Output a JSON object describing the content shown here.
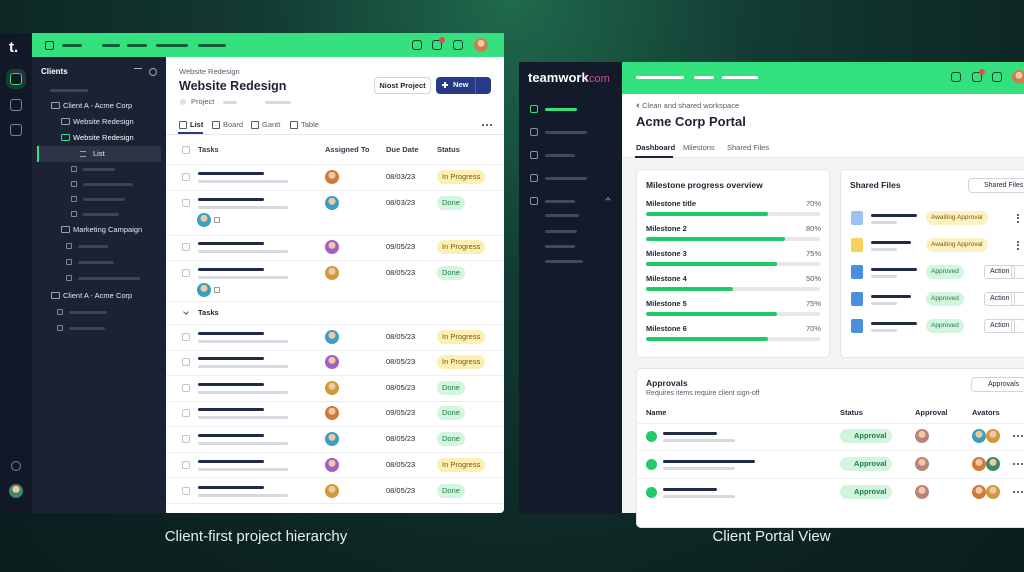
{
  "left": {
    "logo": "t.",
    "tree": {
      "title": "Clients",
      "items": [
        "Client A - Acme Corp",
        "Website Redesign",
        "Website Redesign",
        "List",
        "Marketing Campaign",
        "Client A - Acme Corp"
      ]
    },
    "main": {
      "breadcrumb": "Website Redesign",
      "title": "Website Redesign",
      "tag": "Project",
      "buttons": [
        "Niost Project",
        "New"
      ],
      "tabs": [
        "List",
        "Board",
        "Gantt",
        "Table"
      ],
      "columns": [
        "Tasks",
        "Assigned To",
        "Due Date",
        "Status"
      ],
      "rows": [
        {
          "due": "08/03/23",
          "status": "In Progress"
        },
        {
          "due": "08/03/23",
          "status": "Done"
        },
        {
          "due": "09/05/23",
          "status": "In Progress"
        },
        {
          "due": "08/05/23",
          "status": "Done"
        }
      ],
      "group": "Tasks",
      "group_rows": [
        {
          "due": "08/05/23",
          "status": "In Progress"
        },
        {
          "due": "08/05/23",
          "status": "In Progress"
        },
        {
          "due": "08/05/23",
          "status": "Done"
        },
        {
          "due": "09/05/23",
          "status": "Done"
        },
        {
          "due": "08/05/23",
          "status": "Done"
        },
        {
          "due": "08/05/23",
          "status": "In Progress"
        },
        {
          "due": "08/05/23",
          "status": "Done"
        }
      ]
    }
  },
  "right": {
    "logo": "teamwork",
    "logo_suffix": ".com",
    "breadcrumb": "Clean and shared workspace",
    "title": "Acme Corp Portal",
    "tabs": [
      "Dashboard",
      "Milestons",
      "Shared Files"
    ],
    "milestones": {
      "title": "Milestone progress overview",
      "items": [
        {
          "name": "Milestone title",
          "percent": 70,
          "label": "70%"
        },
        {
          "name": "Milestone 2",
          "percent": 80,
          "label": "80%"
        },
        {
          "name": "Milestone 3",
          "percent": 75,
          "label": "75%"
        },
        {
          "name": "Milestone 4",
          "percent": 50,
          "label": "50%"
        },
        {
          "name": "Milestone 5",
          "percent": 75,
          "label": "75%"
        },
        {
          "name": "Milestone 6",
          "percent": 70,
          "label": "70%"
        }
      ]
    },
    "files": {
      "title": "Shared Files",
      "button": "Shared Files",
      "items": [
        {
          "status": "Awaiting Approval"
        },
        {
          "status": "Awaiting Approval"
        },
        {
          "status": "Approved",
          "action": "Action"
        },
        {
          "status": "Approved",
          "action": "Action"
        },
        {
          "status": "Approved",
          "action": "Action"
        }
      ]
    },
    "approvals": {
      "title": "Approvals",
      "subtitle": "Requires items require client sign-off",
      "button": "Approvals",
      "columns": [
        "Name",
        "Status",
        "Approval",
        "Avators"
      ],
      "rows": [
        {
          "status": "Approval"
        },
        {
          "status": "Approval"
        },
        {
          "status": "Approval"
        }
      ]
    }
  },
  "captions": [
    "Client-first project hierarchy",
    "Client Portal View"
  ]
}
